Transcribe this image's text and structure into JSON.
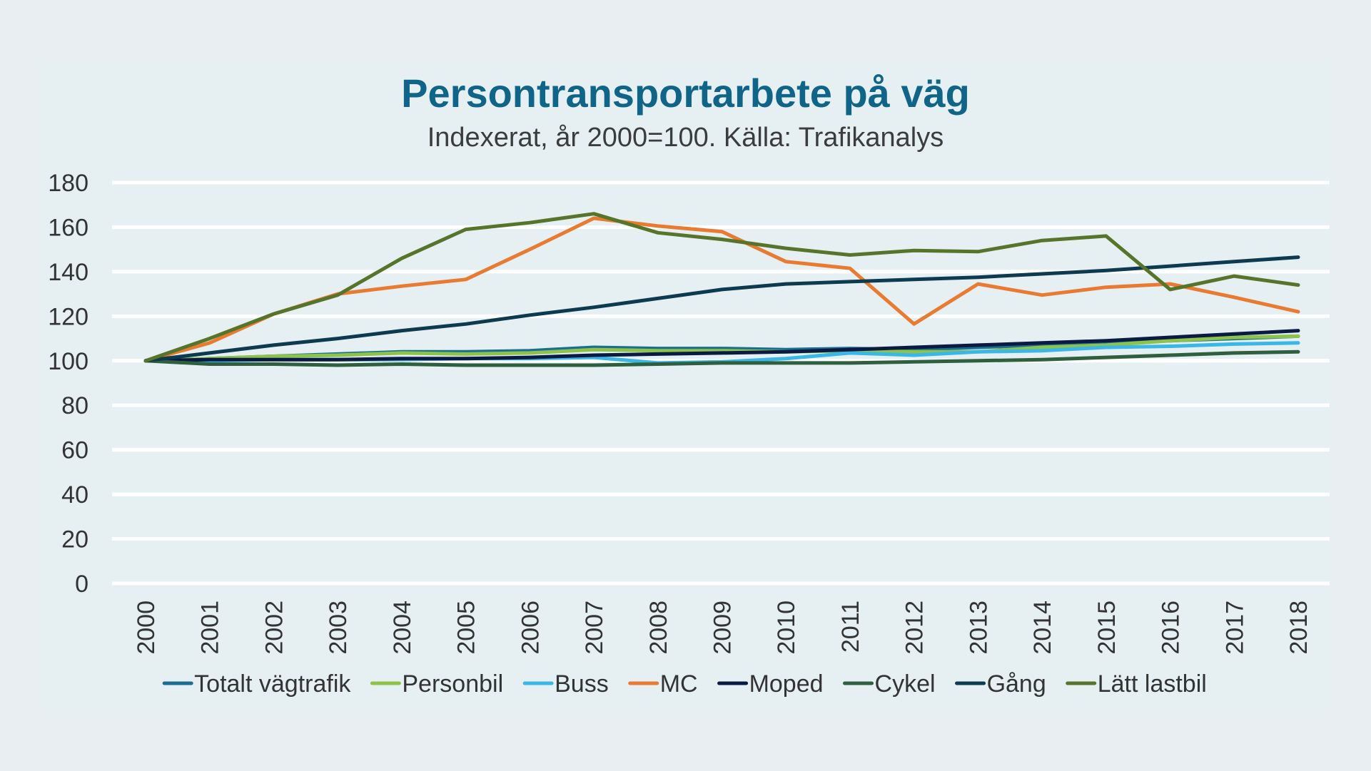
{
  "chart_data": {
    "type": "line",
    "title": "Persontransportarbete på väg",
    "subtitle": "Indexerat, år 2000=100. Källa: Trafikanalys",
    "xlabel": "",
    "ylabel": "",
    "ylim": [
      0,
      180
    ],
    "yticks": [
      "0",
      "20",
      "40",
      "60",
      "80",
      "100",
      "120",
      "140",
      "160",
      "180"
    ],
    "grid": true,
    "legend_position": "bottom",
    "categories": [
      "2000",
      "2001",
      "2002",
      "2003",
      "2004",
      "2005",
      "2006",
      "2007",
      "2008",
      "2009",
      "2010",
      "2011",
      "2012",
      "2013",
      "2014",
      "2015",
      "2016",
      "2017",
      "2018"
    ],
    "series": [
      {
        "name": "Totalt vägtrafik",
        "color": "#1a6e91",
        "values": [
          100,
          101,
          102,
          103,
          104,
          104,
          104.5,
          106,
          105.5,
          105.5,
          105,
          105.5,
          105,
          106,
          107,
          108,
          109,
          110,
          111
        ]
      },
      {
        "name": "Personbil",
        "color": "#8dc34a",
        "values": [
          100,
          101,
          102,
          102.5,
          103.5,
          103,
          103.5,
          105,
          104.5,
          104.5,
          104,
          104.5,
          104,
          104,
          106,
          107,
          109,
          110.5,
          111
        ]
      },
      {
        "name": "Buss",
        "color": "#3ab7e6",
        "values": [
          100,
          100,
          100.5,
          100.5,
          100.5,
          101,
          101,
          101.5,
          99,
          99.5,
          101,
          103.5,
          102.5,
          104,
          104.5,
          106,
          106.5,
          107.5,
          108
        ]
      },
      {
        "name": "MC",
        "color": "#e87a31",
        "values": [
          100,
          108,
          121,
          130,
          133.5,
          136.5,
          150,
          164,
          160.5,
          158,
          144.5,
          141.5,
          116.5,
          134.5,
          129.5,
          133,
          134.5,
          128.5,
          122
        ]
      },
      {
        "name": "Moped",
        "color": "#0b1a42",
        "values": [
          100,
          100.5,
          100.5,
          100.5,
          101,
          101,
          101.5,
          102.5,
          103,
          103.5,
          104,
          105,
          106,
          107,
          108,
          109,
          110.5,
          112,
          113.5
        ]
      },
      {
        "name": "Cykel",
        "color": "#2e5f3e",
        "values": [
          100,
          98.5,
          98.5,
          98,
          98.5,
          98,
          98,
          98,
          98.5,
          99,
          99,
          99,
          99.5,
          100,
          100.5,
          101.5,
          102.5,
          103.5,
          104
        ]
      },
      {
        "name": "Gång",
        "color": "#0d3a4e",
        "values": [
          100,
          103.5,
          107,
          110,
          113.5,
          116.5,
          120.5,
          124,
          128,
          132,
          134.5,
          135.5,
          136.5,
          137.5,
          139,
          140.5,
          142.5,
          144.5,
          146.5
        ]
      },
      {
        "name": "Lätt lastbil",
        "color": "#56752a",
        "values": [
          100,
          110,
          121,
          129.5,
          146,
          159,
          162,
          166,
          157.5,
          154.5,
          150.5,
          147.5,
          149.5,
          149,
          154,
          156,
          132,
          138,
          134
        ]
      }
    ]
  }
}
